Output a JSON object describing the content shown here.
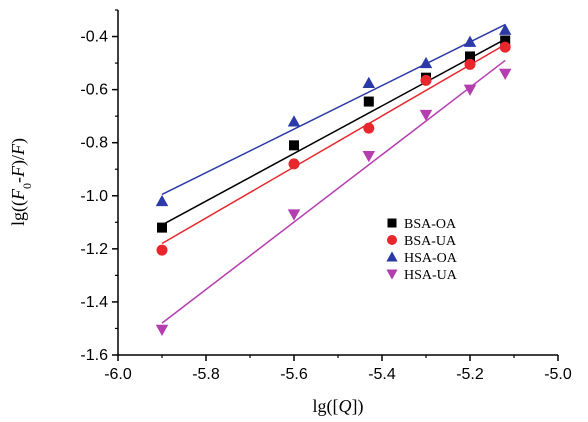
{
  "chart_data": {
    "type": "scatter",
    "title": "",
    "xlabel_parts": [
      "lg([",
      "Q",
      "])"
    ],
    "ylabel_parts": [
      "lg((",
      "F",
      "0",
      "-",
      "F",
      ")/",
      "F",
      ")"
    ],
    "xlim": [
      -6.0,
      -5.0
    ],
    "ylim": [
      -1.6,
      -0.3
    ],
    "xticks": [
      -6.0,
      -5.8,
      -5.6,
      -5.4,
      -5.2,
      -5.0
    ],
    "xtick_labels": [
      "-6.0",
      "-5.8",
      "-5.6",
      "-5.4",
      "-5.2",
      "-5.0"
    ],
    "yticks": [
      -1.6,
      -1.4,
      -1.2,
      -1.0,
      -0.8,
      -0.6,
      -0.4
    ],
    "ytick_labels": [
      "-1.6",
      "-1.4",
      "-1.2",
      "-1.0",
      "-0.8",
      "-0.6",
      "-0.4"
    ],
    "grid": false,
    "legend_position": "center-right",
    "x": [
      -5.9,
      -5.6,
      -5.43,
      -5.3,
      -5.2,
      -5.12
    ],
    "series": [
      {
        "name": "BSA-OA",
        "marker": "square",
        "color": "#000000",
        "y": [
          -1.12,
          -0.81,
          -0.645,
          -0.555,
          -0.475,
          -0.415
        ],
        "fit": [
          [
            -5.9,
            -1.11
          ],
          [
            -5.12,
            -0.41
          ]
        ]
      },
      {
        "name": "BSA-UA",
        "marker": "circle",
        "color": "#e8262b",
        "y": [
          -1.205,
          -0.88,
          -0.745,
          -0.565,
          -0.505,
          -0.44
        ],
        "fit": [
          [
            -5.9,
            -1.18
          ],
          [
            -5.12,
            -0.43
          ]
        ]
      },
      {
        "name": "HSA-OA",
        "marker": "triangle-up",
        "color": "#2b3aa6",
        "y": [
          -1.02,
          -0.72,
          -0.575,
          -0.5,
          -0.42,
          -0.375
        ],
        "fit": [
          [
            -5.9,
            -0.995
          ],
          [
            -5.12,
            -0.355
          ]
        ]
      },
      {
        "name": "HSA-UA",
        "marker": "triangle-down",
        "color": "#b43db0",
        "y": [
          -1.505,
          -1.07,
          -0.85,
          -0.695,
          -0.6,
          -0.54
        ],
        "fit": [
          [
            -5.9,
            -1.48
          ],
          [
            -5.12,
            -0.49
          ]
        ]
      }
    ]
  }
}
